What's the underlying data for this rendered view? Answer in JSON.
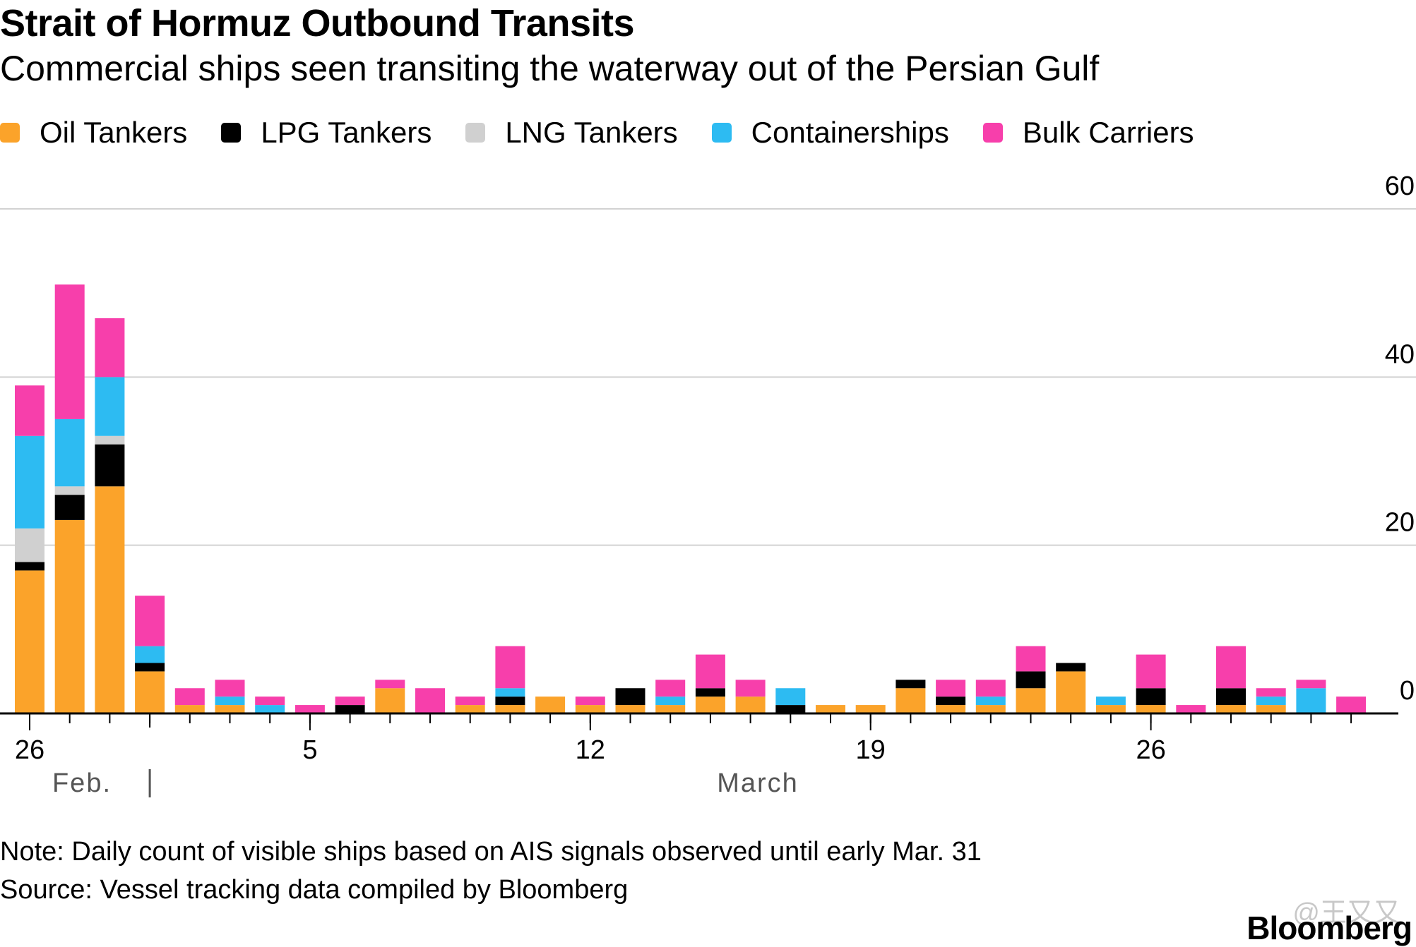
{
  "header": {
    "title": "Strait of Hormuz Outbound Transits",
    "subtitle": "Commercial ships seen transiting the waterway out of the Persian Gulf"
  },
  "legend": [
    {
      "name": "Oil Tankers",
      "color": "#fba32a"
    },
    {
      "name": "LPG Tankers",
      "color": "#000000"
    },
    {
      "name": "LNG Tankers",
      "color": "#d0d0d0"
    },
    {
      "name": "Containerships",
      "color": "#2dbbf2"
    },
    {
      "name": "Bulk Carriers",
      "color": "#f73fab"
    }
  ],
  "footer": {
    "note": "Note: Daily count of visible ships based on AIS signals observed until early Mar. 31",
    "source": "Source: Vessel tracking data compiled by Bloomberg",
    "logo": "Bloomberg",
    "watermark": "@王又又"
  },
  "chart_data": {
    "type": "bar",
    "stacked": true,
    "categories": [
      "Feb 26",
      "Feb 27",
      "Feb 28",
      "Mar 1",
      "Mar 2",
      "Mar 3",
      "Mar 4",
      "Mar 5",
      "Mar 6",
      "Mar 7",
      "Mar 8",
      "Mar 9",
      "Mar 10",
      "Mar 11",
      "Mar 12",
      "Mar 13",
      "Mar 14",
      "Mar 15",
      "Mar 16",
      "Mar 17",
      "Mar 18",
      "Mar 19",
      "Mar 20",
      "Mar 21",
      "Mar 22",
      "Mar 23",
      "Mar 24",
      "Mar 25",
      "Mar 26",
      "Mar 27",
      "Mar 28",
      "Mar 29",
      "Mar 30",
      "Mar 31"
    ],
    "series": [
      {
        "name": "Oil Tankers",
        "values": [
          17,
          23,
          27,
          5,
          1,
          1,
          0,
          0,
          0,
          3,
          0,
          1,
          1,
          2,
          1,
          1,
          1,
          2,
          2,
          0,
          1,
          1,
          3,
          1,
          1,
          3,
          5,
          1,
          1,
          0,
          1,
          1,
          0,
          0
        ]
      },
      {
        "name": "LPG Tankers",
        "values": [
          1,
          3,
          5,
          1,
          0,
          0,
          0,
          0,
          1,
          0,
          0,
          0,
          1,
          0,
          0,
          2,
          0,
          1,
          0,
          1,
          0,
          0,
          1,
          1,
          0,
          2,
          1,
          0,
          2,
          0,
          2,
          0,
          0,
          0
        ]
      },
      {
        "name": "LNG Tankers",
        "values": [
          4,
          1,
          1,
          0,
          0,
          0,
          0,
          0,
          0,
          0,
          0,
          0,
          0,
          0,
          0,
          0,
          0,
          0,
          0,
          0,
          0,
          0,
          0,
          0,
          0,
          0,
          0,
          0,
          0,
          0,
          0,
          0,
          0,
          0
        ]
      },
      {
        "name": "Containerships",
        "values": [
          11,
          8,
          7,
          2,
          0,
          1,
          1,
          0,
          0,
          0,
          0,
          0,
          1,
          0,
          0,
          0,
          1,
          0,
          0,
          2,
          0,
          0,
          0,
          0,
          1,
          0,
          0,
          1,
          0,
          0,
          0,
          1,
          3,
          0
        ]
      },
      {
        "name": "Bulk Carriers",
        "values": [
          6,
          16,
          7,
          6,
          2,
          2,
          1,
          1,
          1,
          1,
          3,
          1,
          5,
          0,
          1,
          0,
          2,
          4,
          2,
          0,
          0,
          0,
          0,
          2,
          2,
          3,
          0,
          0,
          4,
          1,
          5,
          1,
          1,
          2
        ]
      }
    ],
    "y_ticks": [
      "0",
      "20",
      "40",
      "60"
    ],
    "ylim": [
      0,
      60
    ],
    "x_tick_labels": [
      {
        "label": "26",
        "date": "Feb 26"
      },
      {
        "label": "5",
        "date": "Mar 5"
      },
      {
        "label": "12",
        "date": "Mar 12"
      },
      {
        "label": "19",
        "date": "Mar 19"
      },
      {
        "label": "26",
        "date": "Mar 26"
      }
    ],
    "month_labels": [
      "Feb.",
      "March"
    ],
    "grid": true,
    "legend_position": "top-left"
  }
}
